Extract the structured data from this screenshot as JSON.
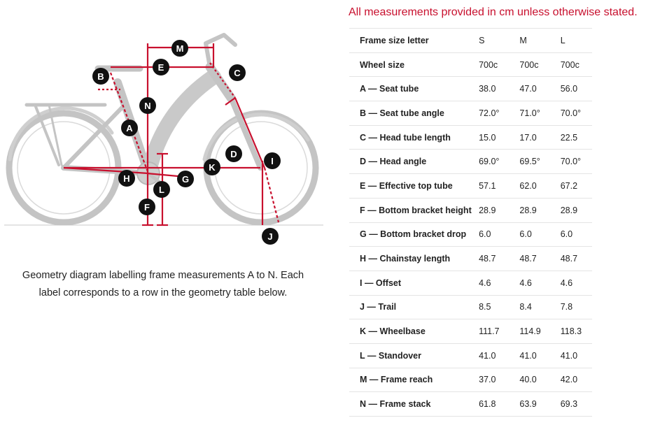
{
  "note": "All measurements provided in cm unless otherwise stated.",
  "caption": "Geometry diagram labelling frame measurements A to N. Each label corresponds to a row in the geometry table below.",
  "diagram_labels": [
    "A",
    "B",
    "C",
    "D",
    "E",
    "F",
    "G",
    "H",
    "I",
    "J",
    "K",
    "L",
    "M",
    "N"
  ],
  "colors": {
    "accent": "#c8102e",
    "marker": "#111111",
    "bike": "#bdbdbd"
  },
  "icons": {
    "diagram": "bike-geometry-diagram"
  },
  "table": {
    "header": {
      "label": "Frame size letter",
      "values": [
        "S",
        "M",
        "L"
      ]
    },
    "rows": [
      {
        "label": "Wheel size",
        "values": [
          "700c",
          "700c",
          "700c"
        ]
      },
      {
        "label": "A — Seat tube",
        "values": [
          "38.0",
          "47.0",
          "56.0"
        ]
      },
      {
        "label": "B — Seat tube angle",
        "values": [
          "72.0°",
          "71.0°",
          "70.0°"
        ]
      },
      {
        "label": "C — Head tube length",
        "values": [
          "15.0",
          "17.0",
          "22.5"
        ]
      },
      {
        "label": "D — Head angle",
        "values": [
          "69.0°",
          "69.5°",
          "70.0°"
        ]
      },
      {
        "label": "E — Effective top tube",
        "values": [
          "57.1",
          "62.0",
          "67.2"
        ]
      },
      {
        "label": "F — Bottom bracket height",
        "values": [
          "28.9",
          "28.9",
          "28.9"
        ]
      },
      {
        "label": "G — Bottom bracket drop",
        "values": [
          "6.0",
          "6.0",
          "6.0"
        ]
      },
      {
        "label": "H — Chainstay length",
        "values": [
          "48.7",
          "48.7",
          "48.7"
        ]
      },
      {
        "label": "I — Offset",
        "values": [
          "4.6",
          "4.6",
          "4.6"
        ]
      },
      {
        "label": "J — Trail",
        "values": [
          "8.5",
          "8.4",
          "7.8"
        ]
      },
      {
        "label": "K — Wheelbase",
        "values": [
          "111.7",
          "114.9",
          "118.3"
        ]
      },
      {
        "label": "L — Standover",
        "values": [
          "41.0",
          "41.0",
          "41.0"
        ]
      },
      {
        "label": "M — Frame reach",
        "values": [
          "37.0",
          "40.0",
          "42.0"
        ]
      },
      {
        "label": "N — Frame stack",
        "values": [
          "61.8",
          "63.9",
          "69.3"
        ]
      }
    ]
  }
}
